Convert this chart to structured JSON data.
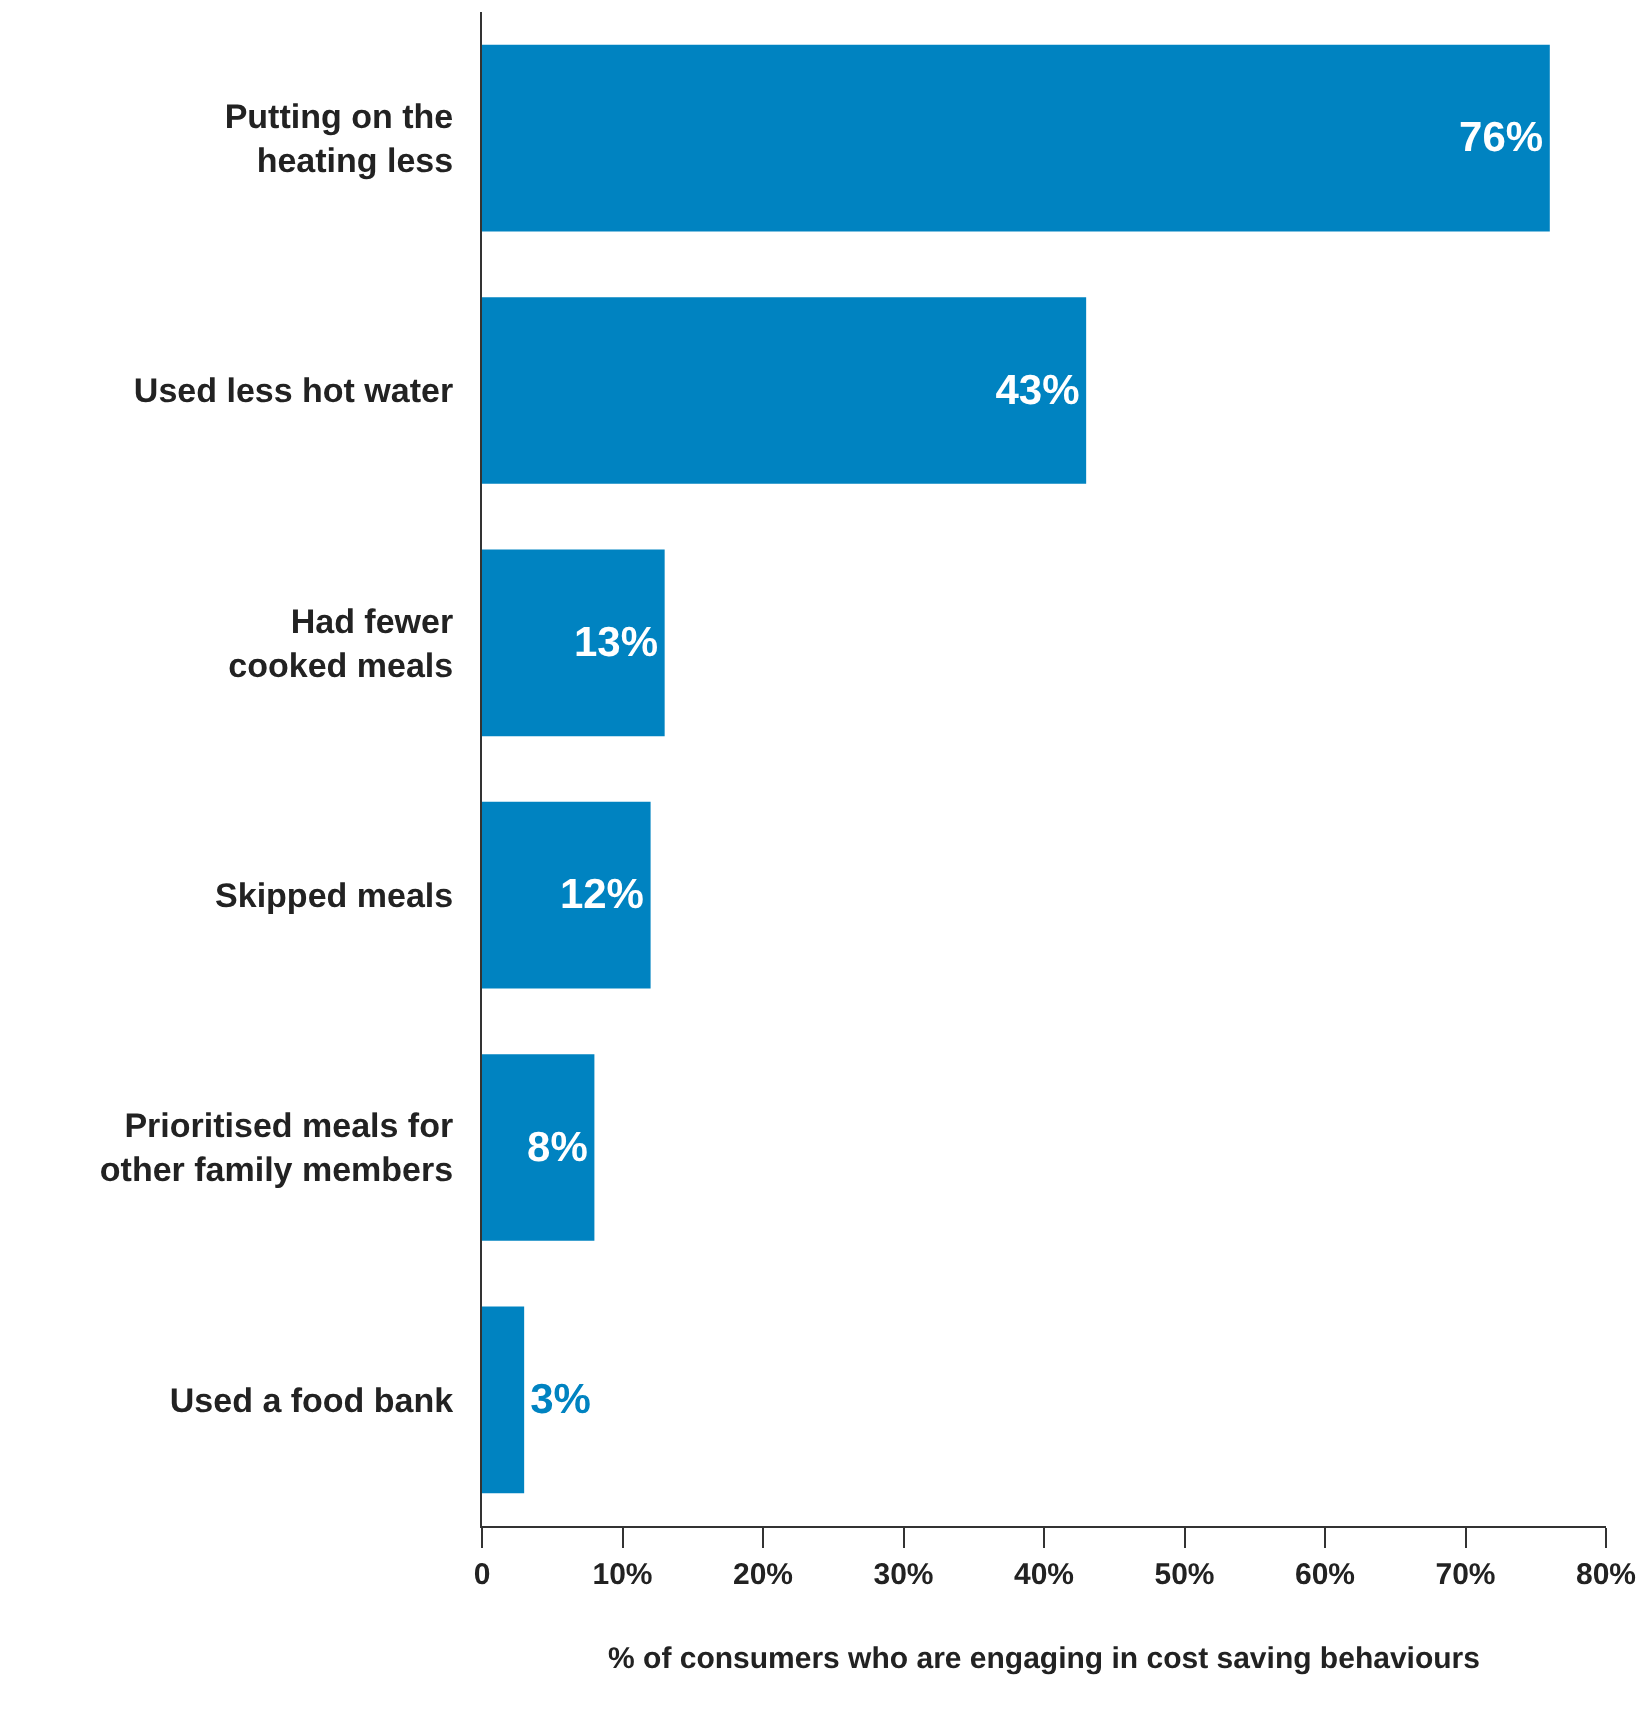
{
  "chart_data": {
    "type": "bar",
    "orientation": "horizontal",
    "categories": [
      "Putting on the\nheating less",
      "Used less hot water",
      "Had fewer\ncooked meals",
      "Skipped meals",
      "Prioritised meals for\nother family members",
      "Used a food bank"
    ],
    "values": [
      76,
      43,
      13,
      12,
      8,
      3
    ],
    "color": "#0083c1",
    "value_labels": [
      "76%",
      "43%",
      "13%",
      "12%",
      "8%",
      "3%"
    ],
    "xlabel": "% of consumers who are engaging in cost saving behaviours",
    "xlim": [
      0,
      80
    ],
    "xticks": [
      0,
      {
        "value": 10,
        "label": "10%"
      },
      {
        "value": 20,
        "label": "20%"
      },
      {
        "value": 30,
        "label": "30%"
      },
      {
        "value": 40,
        "label": "40%"
      },
      {
        "value": 50,
        "label": "50%"
      },
      {
        "value": 60,
        "label": "60%"
      },
      {
        "value": 70,
        "label": "70%"
      },
      {
        "value": 80,
        "label": "80%"
      }
    ],
    "grid": false,
    "legend": false
  }
}
